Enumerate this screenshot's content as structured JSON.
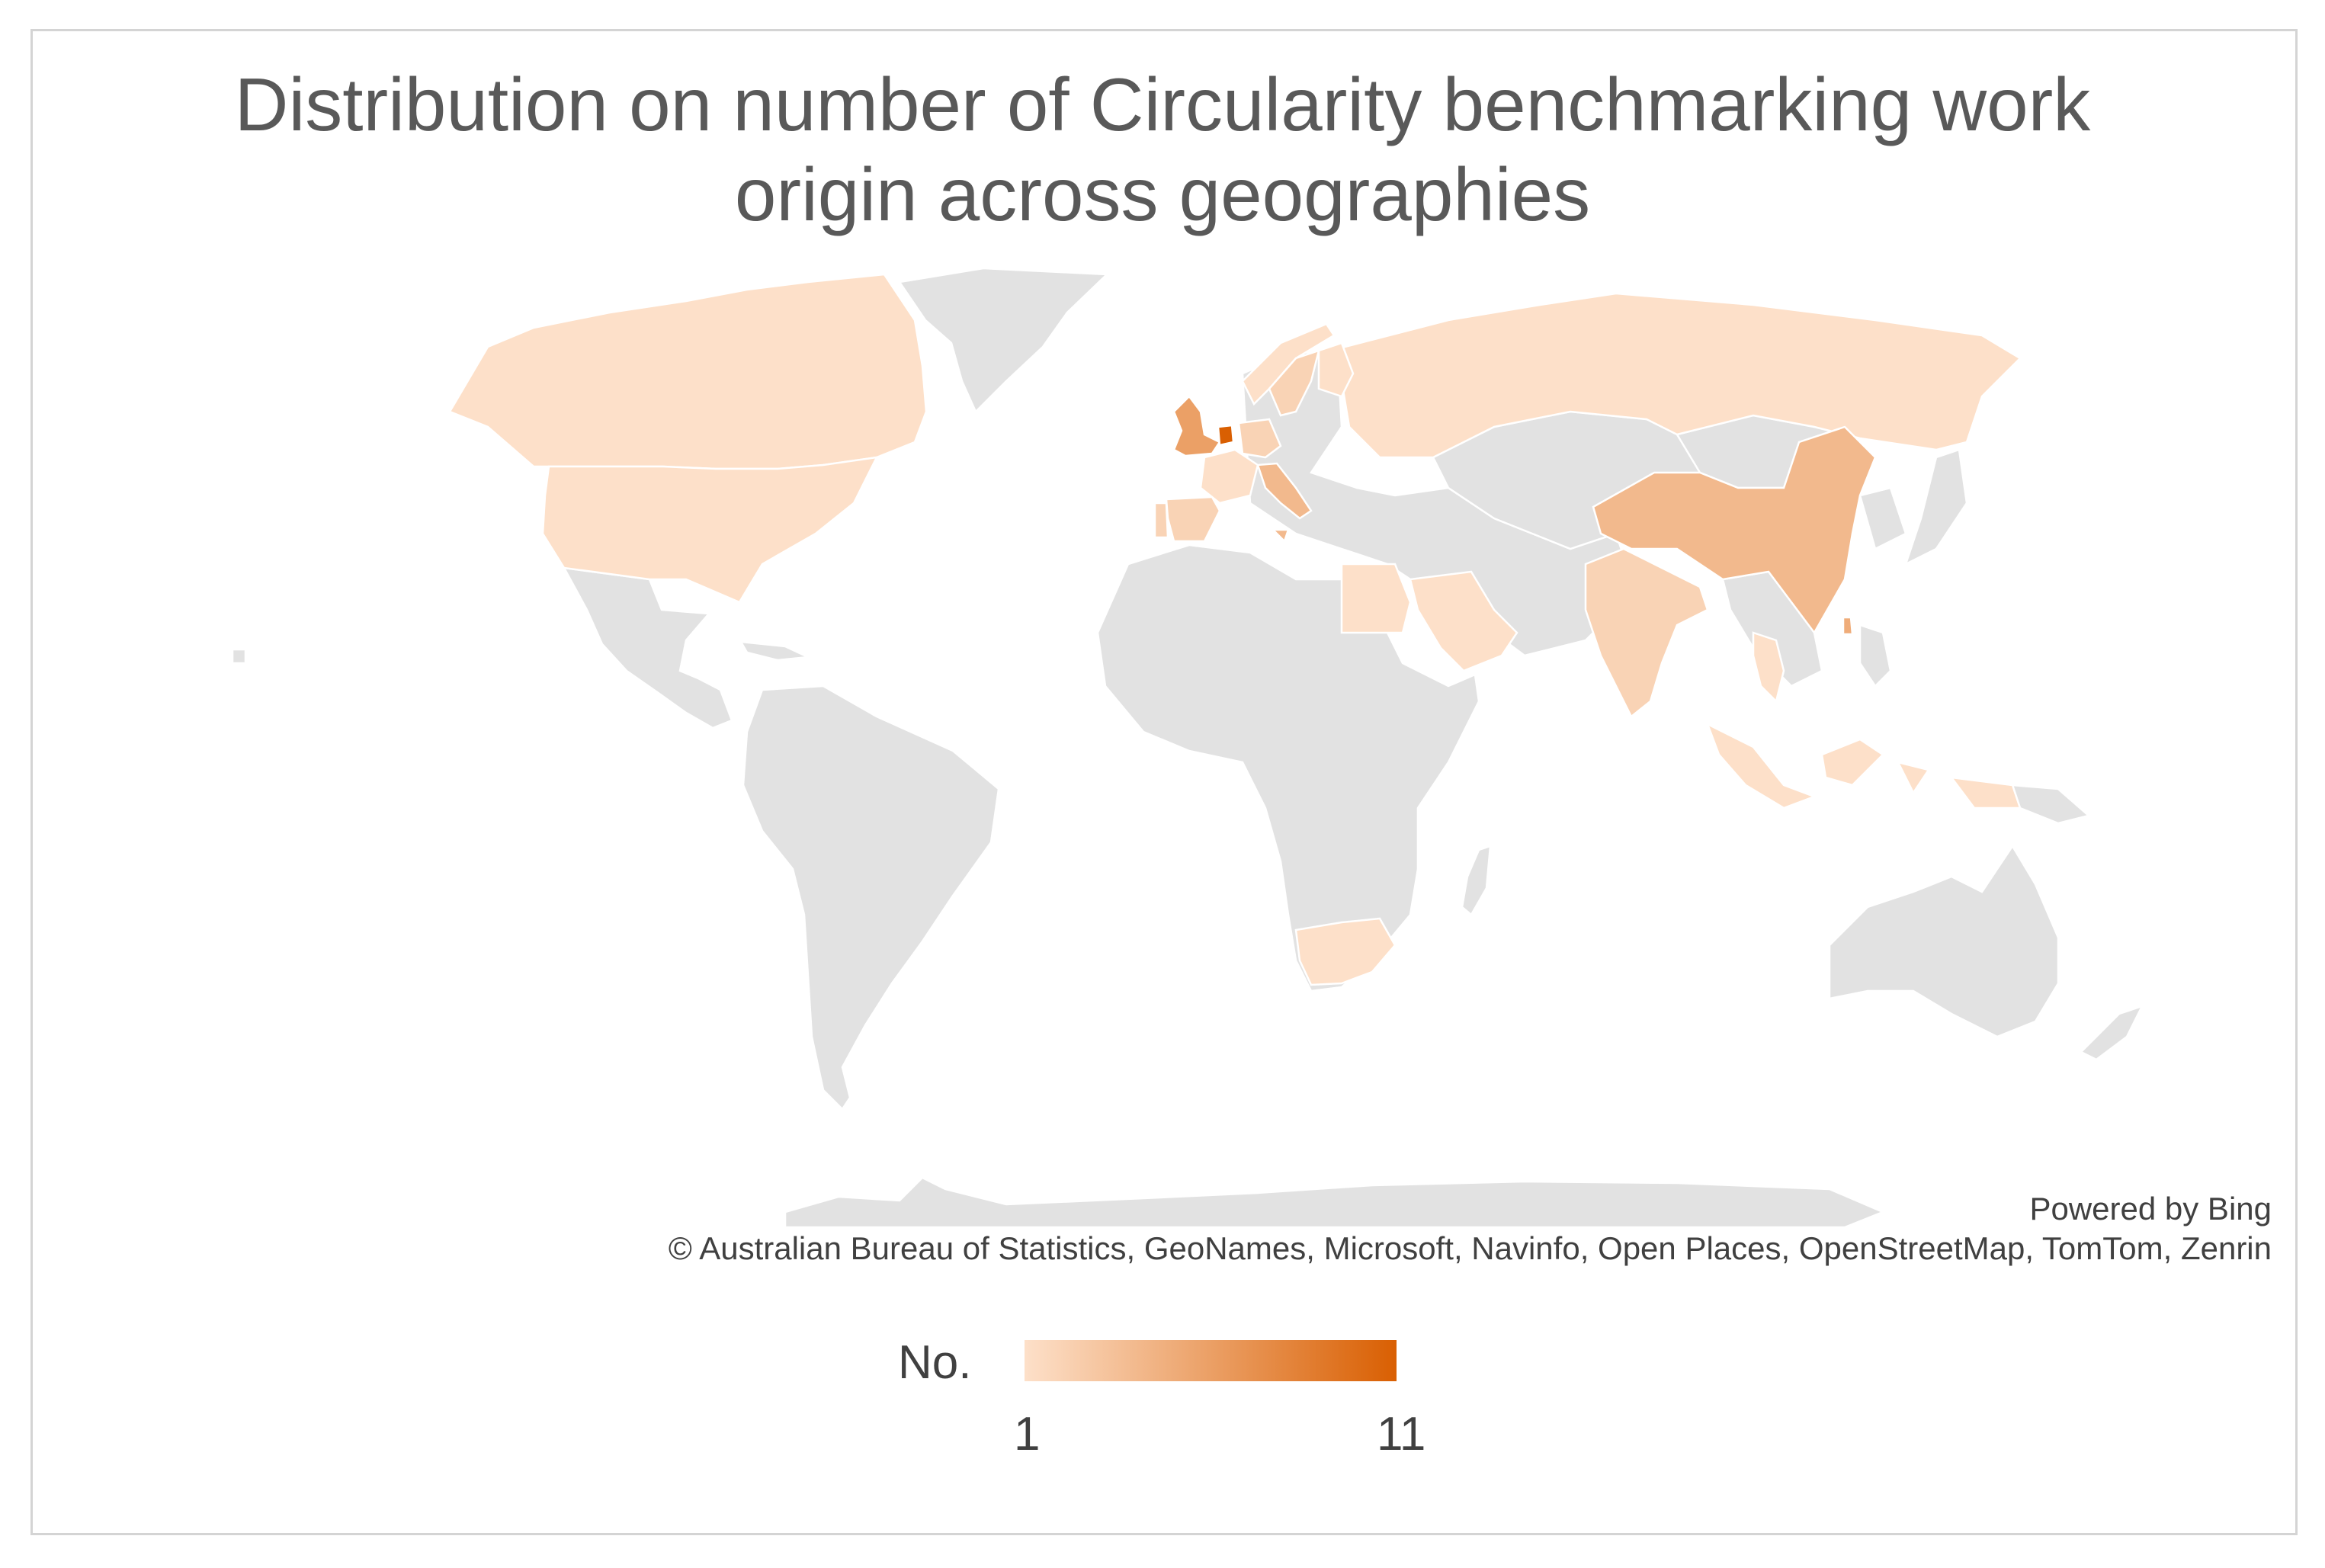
{
  "title_line1": "Distribution on number of Circularity benchmarking work",
  "title_line2": "origin across geographies",
  "attribution": {
    "powered_by": "Powered by Bing",
    "copyright": "© Australian Bureau of Statistics, GeoNames, Microsoft, Navinfo, Open Places, OpenStreetMap, TomTom, Zenrin"
  },
  "legend": {
    "title": "No.",
    "min_label": "1",
    "max_label": "11",
    "min_value": 1,
    "max_value": 11,
    "color_low": "#fde0c9",
    "color_high": "#d95f02"
  },
  "colors": {
    "no_data": "#e2e2e2",
    "border": "#d4d4d4",
    "title_text": "#595959"
  },
  "map_data": {
    "regions": [
      {
        "region": "Canada",
        "value": 1
      },
      {
        "region": "United States",
        "value": 1
      },
      {
        "region": "United Kingdom",
        "value": 6
      },
      {
        "region": "Netherlands",
        "value": 11
      },
      {
        "region": "Italy",
        "value": 4
      },
      {
        "region": "Spain",
        "value": 2
      },
      {
        "region": "Portugal",
        "value": 2
      },
      {
        "region": "Germany",
        "value": 2
      },
      {
        "region": "France",
        "value": 1
      },
      {
        "region": "Sweden",
        "value": 2
      },
      {
        "region": "Finland",
        "value": 1
      },
      {
        "region": "Norway",
        "value": 1
      },
      {
        "region": "Russia",
        "value": 1
      },
      {
        "region": "China",
        "value": 4
      },
      {
        "region": "Taiwan",
        "value": 5
      },
      {
        "region": "India",
        "value": 2
      },
      {
        "region": "Thailand",
        "value": 1
      },
      {
        "region": "Indonesia",
        "value": 1
      },
      {
        "region": "Egypt",
        "value": 1
      },
      {
        "region": "Saudi Arabia",
        "value": 1
      },
      {
        "region": "South Africa",
        "value": 1
      }
    ]
  }
}
